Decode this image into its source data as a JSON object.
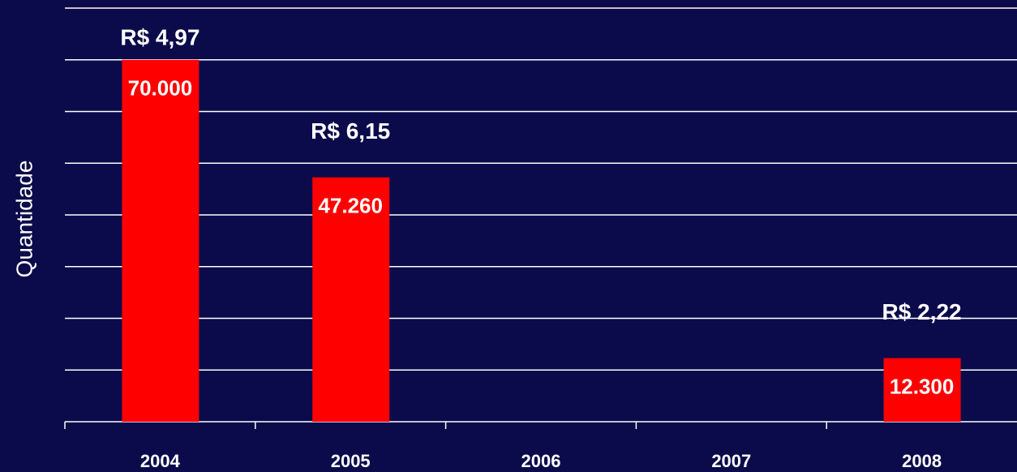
{
  "chart_data": {
    "type": "bar",
    "y_label": "Quantidade",
    "categories": [
      "2004",
      "2005",
      "2006",
      "2007",
      "2008"
    ],
    "values": [
      70000,
      47260,
      null,
      null,
      12300
    ],
    "value_labels": [
      "70.000",
      "47.260",
      null,
      null,
      "12.300"
    ],
    "annotations": [
      "R$ 4,97",
      "R$ 6,15",
      null,
      null,
      "R$ 2,22"
    ],
    "color": "#ff0000",
    "ylim": [
      0,
      80000
    ],
    "yticks": [
      0,
      10000,
      20000,
      30000,
      40000,
      50000,
      60000,
      70000,
      80000
    ],
    "grid": true
  }
}
